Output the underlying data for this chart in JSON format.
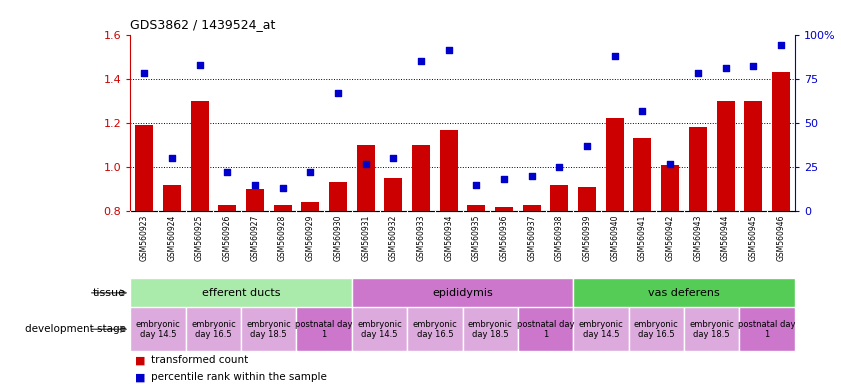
{
  "title": "GDS3862 / 1439524_at",
  "samples": [
    "GSM560923",
    "GSM560924",
    "GSM560925",
    "GSM560926",
    "GSM560927",
    "GSM560928",
    "GSM560929",
    "GSM560930",
    "GSM560931",
    "GSM560932",
    "GSM560933",
    "GSM560934",
    "GSM560935",
    "GSM560936",
    "GSM560937",
    "GSM560938",
    "GSM560939",
    "GSM560940",
    "GSM560941",
    "GSM560942",
    "GSM560943",
    "GSM560944",
    "GSM560945",
    "GSM560946"
  ],
  "bar_values": [
    1.19,
    0.92,
    1.3,
    0.83,
    0.9,
    0.83,
    0.84,
    0.93,
    1.1,
    0.95,
    1.1,
    1.17,
    0.83,
    0.82,
    0.83,
    0.92,
    0.91,
    1.22,
    1.13,
    1.01,
    1.18,
    1.3,
    1.3,
    1.43
  ],
  "dot_values": [
    78,
    30,
    83,
    22,
    15,
    13,
    22,
    67,
    27,
    30,
    85,
    91,
    15,
    18,
    20,
    25,
    37,
    88,
    57,
    27,
    78,
    81,
    82,
    94
  ],
  "ylim_left": [
    0.8,
    1.6
  ],
  "ylim_right": [
    0,
    100
  ],
  "yticks_left": [
    0.8,
    1.0,
    1.2,
    1.4,
    1.6
  ],
  "yticks_right": [
    0,
    25,
    50,
    75,
    100
  ],
  "bar_color": "#cc0000",
  "dot_color": "#0000cc",
  "bg_color": "#ffffff",
  "xticklabel_bg": "#d0d0d0",
  "tissue_groups": [
    {
      "label": "efferent ducts",
      "start": 0,
      "end": 7,
      "color": "#aaeaaa"
    },
    {
      "label": "epididymis",
      "start": 8,
      "end": 15,
      "color": "#cc77cc"
    },
    {
      "label": "vas deferens",
      "start": 16,
      "end": 23,
      "color": "#55cc55"
    }
  ],
  "dev_stage_groups": [
    {
      "label": "embryonic\nday 14.5",
      "start": 0,
      "end": 1,
      "color": "#ddaadd"
    },
    {
      "label": "embryonic\nday 16.5",
      "start": 2,
      "end": 3,
      "color": "#ddaadd"
    },
    {
      "label": "embryonic\nday 18.5",
      "start": 4,
      "end": 5,
      "color": "#ddaadd"
    },
    {
      "label": "postnatal day\n1",
      "start": 6,
      "end": 7,
      "color": "#cc77cc"
    },
    {
      "label": "embryonic\nday 14.5",
      "start": 8,
      "end": 9,
      "color": "#ddaadd"
    },
    {
      "label": "embryonic\nday 16.5",
      "start": 10,
      "end": 11,
      "color": "#ddaadd"
    },
    {
      "label": "embryonic\nday 18.5",
      "start": 12,
      "end": 13,
      "color": "#ddaadd"
    },
    {
      "label": "postnatal day\n1",
      "start": 14,
      "end": 15,
      "color": "#cc77cc"
    },
    {
      "label": "embryonic\nday 14.5",
      "start": 16,
      "end": 17,
      "color": "#ddaadd"
    },
    {
      "label": "embryonic\nday 16.5",
      "start": 18,
      "end": 19,
      "color": "#ddaadd"
    },
    {
      "label": "embryonic\nday 18.5",
      "start": 20,
      "end": 21,
      "color": "#ddaadd"
    },
    {
      "label": "postnatal day\n1",
      "start": 22,
      "end": 23,
      "color": "#cc77cc"
    }
  ],
  "legend_bar_label": "transformed count",
  "legend_dot_label": "percentile rank within the sample",
  "tissue_label": "tissue",
  "dev_stage_label": "development stage",
  "fig_width": 8.41,
  "fig_height": 3.84,
  "fig_dpi": 100
}
